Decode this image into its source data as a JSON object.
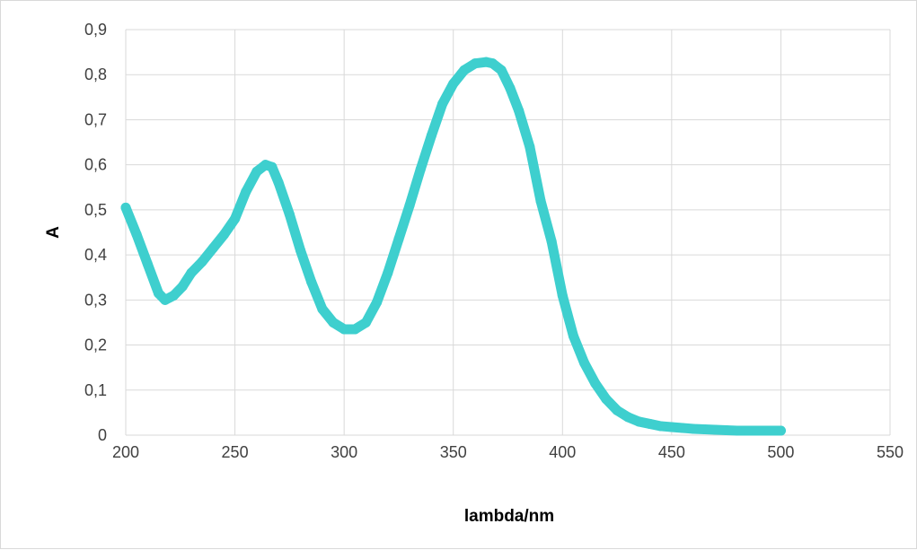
{
  "chart_data": {
    "type": "scatter",
    "title": "",
    "xlabel": "lambda/nm",
    "ylabel": "A",
    "xlim": [
      200,
      550
    ],
    "ylim": [
      0,
      0.9
    ],
    "x_ticks": [
      200,
      250,
      300,
      350,
      400,
      450,
      500,
      550
    ],
    "x_tick_labels": [
      "200",
      "250",
      "300",
      "350",
      "400",
      "450",
      "500",
      "550"
    ],
    "y_ticks": [
      0,
      0.1,
      0.2,
      0.3,
      0.4,
      0.5,
      0.6,
      0.7,
      0.8,
      0.9
    ],
    "y_tick_labels": [
      "0",
      "0,1",
      "0,2",
      "0,3",
      "0,4",
      "0,5",
      "0,6",
      "0,7",
      "0,8",
      "0,9"
    ],
    "grid": true,
    "legend": "none",
    "series": [
      {
        "color": "#3ecfce",
        "x": [
          200,
          205,
          210,
          215,
          218,
          222,
          226,
          230,
          235,
          240,
          245,
          250,
          255,
          260,
          264,
          267,
          270,
          275,
          280,
          285,
          290,
          295,
          300,
          305,
          310,
          315,
          320,
          325,
          330,
          335,
          340,
          345,
          350,
          355,
          360,
          365,
          368,
          372,
          376,
          380,
          385,
          390,
          395,
          400,
          405,
          410,
          415,
          420,
          425,
          430,
          435,
          440,
          445,
          450,
          455,
          460,
          465,
          470,
          475,
          480,
          485,
          490,
          495,
          500
        ],
        "y": [
          0.505,
          0.445,
          0.38,
          0.315,
          0.3,
          0.31,
          0.33,
          0.36,
          0.385,
          0.415,
          0.445,
          0.48,
          0.54,
          0.585,
          0.6,
          0.595,
          0.56,
          0.49,
          0.41,
          0.34,
          0.28,
          0.25,
          0.235,
          0.235,
          0.25,
          0.295,
          0.36,
          0.435,
          0.51,
          0.59,
          0.665,
          0.735,
          0.78,
          0.81,
          0.825,
          0.828,
          0.825,
          0.81,
          0.77,
          0.72,
          0.64,
          0.52,
          0.43,
          0.31,
          0.22,
          0.16,
          0.115,
          0.08,
          0.055,
          0.04,
          0.03,
          0.025,
          0.02,
          0.018,
          0.016,
          0.014,
          0.013,
          0.012,
          0.011,
          0.01,
          0.01,
          0.01,
          0.01,
          0.01
        ]
      }
    ]
  }
}
